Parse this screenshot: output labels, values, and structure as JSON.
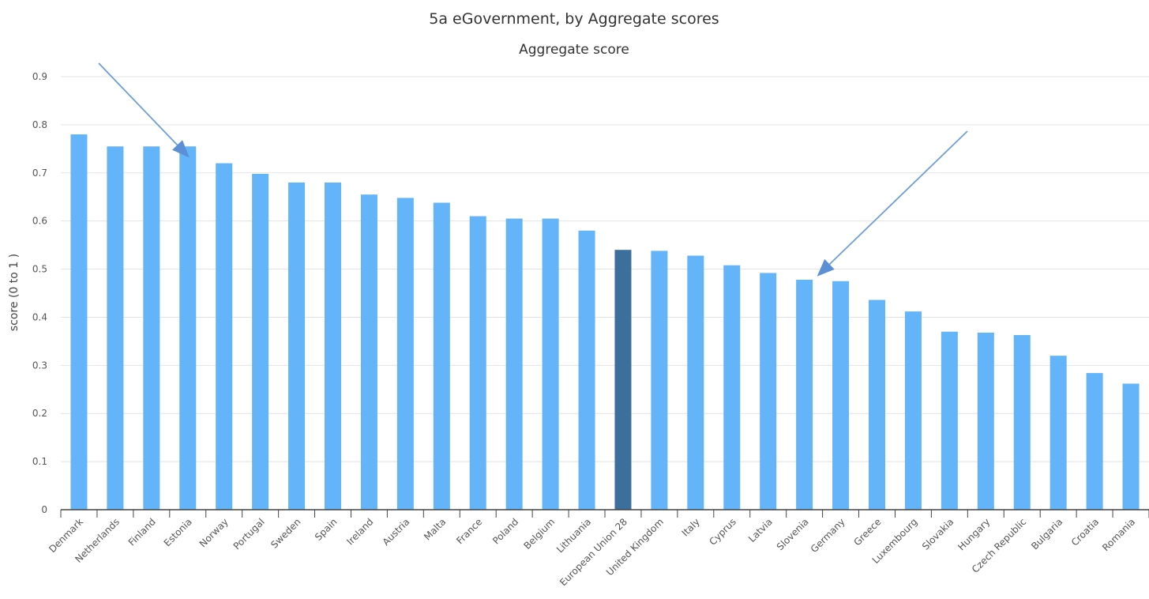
{
  "chart_data": {
    "type": "bar",
    "title": "5a eGovernment, by Aggregate scores",
    "subtitle": "Aggregate score",
    "ylabel": "score (0 to 1 )",
    "xlabel": "",
    "ylim": [
      0,
      0.9
    ],
    "yticks": [
      "0",
      "0.1",
      "0.2",
      "0.3",
      "0.4",
      "0.5",
      "0.6",
      "0.7",
      "0.8",
      "0.9"
    ],
    "grid": true,
    "legend": "none",
    "colors": {
      "bar": "#63b4f8",
      "highlight": "#3c6f9c",
      "arrow": "#6d9edb"
    },
    "highlight_category": "European Union 28",
    "categories": [
      "Denmark",
      "Netherlands",
      "Finland",
      "Estonia",
      "Norway",
      "Portugal",
      "Sweden",
      "Spain",
      "Ireland",
      "Austria",
      "Malta",
      "France",
      "Poland",
      "Belgium",
      "Lithuania",
      "European Union 28",
      "United Kingdom",
      "Italy",
      "Cyprus",
      "Latvia",
      "Slovenia",
      "Germany",
      "Greece",
      "Luxembourg",
      "Slovakia",
      "Hungary",
      "Czech Republic",
      "Bulgaria",
      "Croatia",
      "Romania"
    ],
    "values": [
      0.78,
      0.755,
      0.755,
      0.755,
      0.72,
      0.698,
      0.68,
      0.68,
      0.655,
      0.648,
      0.638,
      0.61,
      0.605,
      0.605,
      0.58,
      0.54,
      0.538,
      0.528,
      0.508,
      0.492,
      0.478,
      0.475,
      0.436,
      0.412,
      0.37,
      0.368,
      0.363,
      0.32,
      0.284,
      0.262
    ],
    "annotations": [
      {
        "type": "arrow",
        "points_to": "Estonia",
        "at_value": 0.745
      },
      {
        "type": "arrow",
        "points_to": "Slovenia",
        "at_value": 0.485
      }
    ]
  }
}
